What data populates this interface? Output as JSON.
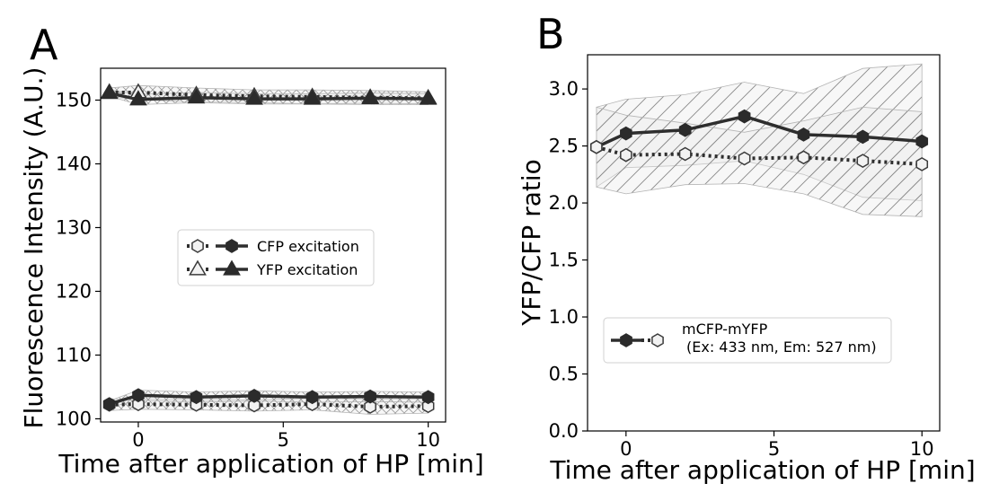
{
  "panels": {
    "a": {
      "letter": "A"
    },
    "b": {
      "letter": "B"
    }
  },
  "chart_data": [
    {
      "panel": "A",
      "type": "line",
      "xlabel": "Time after application of HP [min]",
      "ylabel": "Fluorescence Intensity (A.U.)",
      "xlim": [
        -1.3,
        10.6
      ],
      "ylim": [
        99.5,
        155
      ],
      "xticks": [
        0,
        5,
        10
      ],
      "yticks": [
        100,
        110,
        120,
        130,
        140,
        150
      ],
      "legend_position": "center-right",
      "legend": [
        {
          "label": "CFP excitation"
        },
        {
          "label": "YFP excitation"
        }
      ],
      "x": [
        -1,
        0,
        2,
        4,
        6,
        8,
        10
      ],
      "series": [
        {
          "group": "CFP excitation",
          "style": "dotted",
          "marker": "hexagon-open",
          "values": [
            102.2,
            102.3,
            102.2,
            102.1,
            102.3,
            101.9,
            102.0
          ],
          "band_low": [
            101.3,
            101.5,
            101.4,
            101.2,
            101.4,
            100.7,
            100.9
          ],
          "band_high": [
            103.1,
            103.1,
            103.0,
            103.0,
            103.2,
            103.1,
            103.1
          ]
        },
        {
          "group": "CFP excitation",
          "style": "solid",
          "marker": "hexagon-filled",
          "values": [
            102.3,
            103.7,
            103.4,
            103.6,
            103.4,
            103.5,
            103.4
          ],
          "band_low": [
            101.8,
            102.9,
            102.6,
            102.8,
            102.6,
            102.7,
            102.6
          ],
          "band_high": [
            102.8,
            104.5,
            104.2,
            104.4,
            104.2,
            104.3,
            104.2
          ]
        },
        {
          "group": "YFP excitation",
          "style": "dotted",
          "marker": "triangle-open",
          "values": [
            151.2,
            151.2,
            150.8,
            150.6,
            150.5,
            150.4,
            150.3
          ],
          "band_low": [
            150.5,
            150.1,
            149.7,
            149.6,
            149.4,
            149.3,
            149.3
          ],
          "band_high": [
            151.9,
            152.3,
            151.9,
            151.6,
            151.6,
            151.5,
            151.3
          ]
        },
        {
          "group": "YFP excitation",
          "style": "solid",
          "marker": "triangle-filled",
          "values": [
            151.1,
            150.1,
            150.4,
            150.2,
            150.2,
            150.3,
            150.2
          ],
          "band_low": [
            150.6,
            149.3,
            149.6,
            149.4,
            149.4,
            149.5,
            149.4
          ],
          "band_high": [
            151.6,
            150.9,
            151.2,
            151.0,
            151.0,
            151.1,
            151.0
          ]
        }
      ]
    },
    {
      "panel": "B",
      "type": "line",
      "xlabel": "Time after application of HP [min]",
      "ylabel": "YFP/CFP ratio",
      "xlim": [
        -1.3,
        10.6
      ],
      "ylim": [
        0.0,
        3.3
      ],
      "xticks": [
        0,
        5,
        10
      ],
      "yticks": [
        0.0,
        0.5,
        1.0,
        1.5,
        2.0,
        2.5,
        3.0
      ],
      "legend_position": "lower-center",
      "legend": [
        {
          "label": "mCFP-mYFP",
          "label_line2": "(Ex: 433 nm, Em: 527 nm)"
        }
      ],
      "x": [
        -1,
        0,
        2,
        4,
        6,
        8,
        10
      ],
      "series": [
        {
          "group": "mCFP-mYFP",
          "style": "solid",
          "marker": "hexagon-filled",
          "values": [
            2.49,
            2.61,
            2.64,
            2.76,
            2.6,
            2.58,
            2.54
          ],
          "band_low": [
            2.14,
            2.31,
            2.33,
            2.37,
            2.25,
            2.05,
            2.02
          ],
          "band_high": [
            2.84,
            2.91,
            2.95,
            3.06,
            2.96,
            3.18,
            3.22
          ]
        },
        {
          "group": "mCFP-mYFP",
          "style": "dotted",
          "marker": "hexagon-open",
          "values": [
            2.49,
            2.42,
            2.43,
            2.39,
            2.4,
            2.37,
            2.34
          ],
          "band_low": [
            2.14,
            2.08,
            2.16,
            2.17,
            2.08,
            1.9,
            1.88
          ],
          "band_high": [
            2.84,
            2.77,
            2.7,
            2.62,
            2.72,
            2.84,
            2.8
          ]
        }
      ]
    }
  ]
}
